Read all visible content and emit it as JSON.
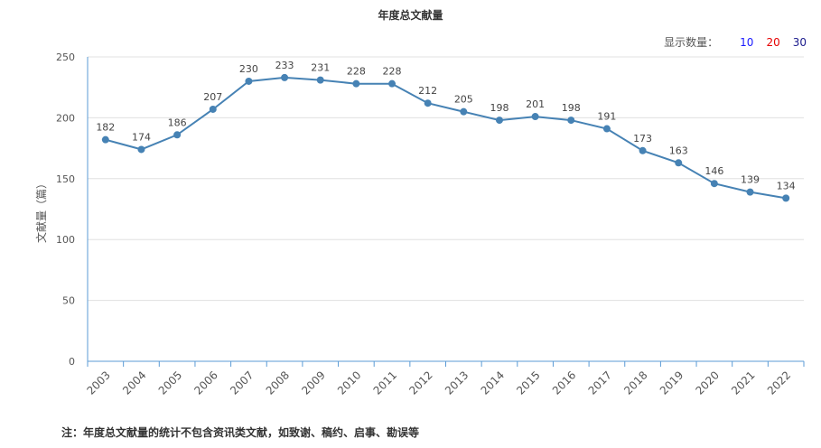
{
  "page": {
    "title": "年度总文献量",
    "display_count_label": "显示数量：",
    "display_options": [
      {
        "label": "10",
        "color": "#1a1aff"
      },
      {
        "label": "20",
        "color": "#e60000"
      },
      {
        "label": "30",
        "color": "#1a1a8c"
      }
    ],
    "note": "注：年度总文献量的统计不包含资讯类文献，如致谢、稿约、启事、勘误等"
  },
  "chart_data": {
    "type": "line",
    "title": "年度总文献量",
    "ylabel": "文献量（篇）",
    "xlabel": "",
    "ylim": [
      0,
      250
    ],
    "yticks": [
      0,
      50,
      100,
      150,
      200,
      250
    ],
    "grid": true,
    "line_color": "#4682b4",
    "categories": [
      "2003",
      "2004",
      "2005",
      "2006",
      "2007",
      "2008",
      "2009",
      "2010",
      "2011",
      "2012",
      "2013",
      "2014",
      "2015",
      "2016",
      "2017",
      "2018",
      "2019",
      "2020",
      "2021",
      "2022"
    ],
    "values": [
      182,
      174,
      186,
      207,
      230,
      233,
      231,
      228,
      228,
      212,
      205,
      198,
      201,
      198,
      191,
      173,
      163,
      146,
      139,
      134
    ]
  }
}
